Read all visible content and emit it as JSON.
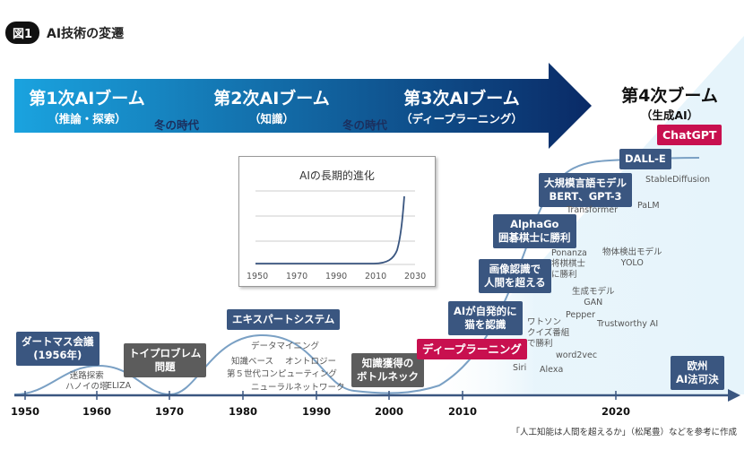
{
  "figure": {
    "badge": "図1",
    "title": "AI技術の変遷"
  },
  "colors": {
    "arrow_start": "#1aa3df",
    "arrow_end": "#0a2a66",
    "box_navy": "#3a5680",
    "box_grey": "#5c5c5c",
    "box_crimson": "#c8104f",
    "curve": "#7aa0c4",
    "wedge": "#e6f4fb"
  },
  "eras": {
    "first": {
      "title": "第1次AIブーム",
      "sub": "（推論・探索）"
    },
    "second": {
      "title": "第2次AIブーム",
      "sub": "（知識）"
    },
    "third": {
      "title": "第3次AIブーム",
      "sub": "（ディープラーニング）"
    },
    "fourth": {
      "title": "第4次ブーム",
      "sub": "（生成AI）"
    },
    "winter1": "冬の時代",
    "winter2": "冬の時代"
  },
  "inset": {
    "title": "AIの長期的進化",
    "ticks": [
      "1950",
      "1970",
      "1990",
      "2010",
      "2030"
    ]
  },
  "timeline": {
    "years": [
      "1950",
      "1960",
      "1970",
      "1980",
      "1990",
      "2000",
      "2010",
      "2020"
    ]
  },
  "boxes": {
    "dartmouth": "ダートマス会議\n(1956年)",
    "toy_problem": "トイプロブレム\n問題",
    "expert": "エキスパートシステム",
    "bottleneck": "知識獲得の\nボトルネック",
    "deep_learning": "ディープラーニング",
    "cat": "AIが自発的に\n猫を認識",
    "image": "画像認識で\n人間を超える",
    "alphago": "AlphaGo\n囲碁棋士に勝利",
    "llm": "大規模言語モデル\nBERT、GPT-3",
    "dalle": "DALL-E",
    "chatgpt": "ChatGPT",
    "eu": "欧州\nAI法可決"
  },
  "notes": {
    "maze": "迷路探索\nハノイの塔",
    "eliza": "ELIZA",
    "data_mining": "データマイニング",
    "knowledge_base": "知識ベース",
    "ontology": "オントロジー",
    "fifth_gen": "第５世代コンピューティング",
    "neural_net": "ニューラルネットワーク",
    "siri": "Siri",
    "watson": "ワトソン\nクイズ番組\nで勝利",
    "alexa": "Alexa",
    "word2vec": "word2vec",
    "pepper": "Pepper",
    "gan": "生成モデル\nGAN",
    "trustworthy": "Trustworthy AI",
    "ponanza": "Ponanza\n将棋棋士\nに勝利",
    "yolo": "物体検出モデル\nYOLO",
    "transformer": "Transformer",
    "palm": "PaLM",
    "stable": "StableDiffusion"
  },
  "source": "「人工知能は人間を超えるか」（松尾豊）などを参考に作成"
}
